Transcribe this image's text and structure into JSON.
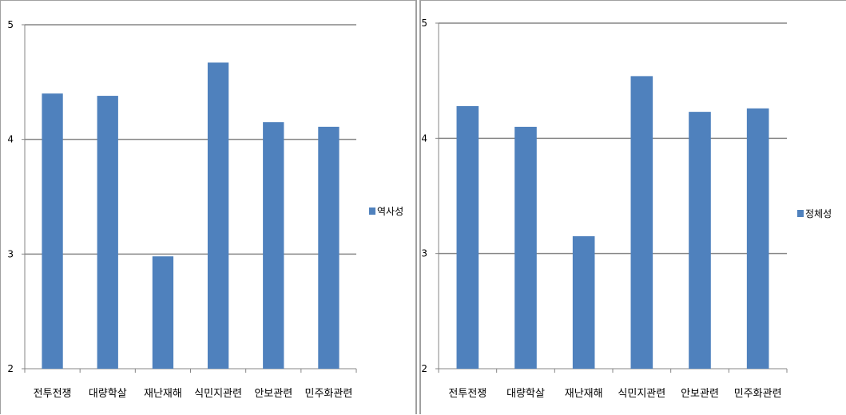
{
  "chart_data": [
    {
      "type": "bar",
      "categories": [
        "전투전쟁",
        "대량학살",
        "재난재해",
        "식민지관련",
        "안보관련",
        "민주화관련"
      ],
      "series": [
        {
          "name": "역사성",
          "values": [
            4.4,
            4.38,
            2.98,
            4.67,
            4.15,
            4.11
          ]
        }
      ],
      "ylim": [
        2,
        5
      ],
      "yticks": [
        2,
        3,
        4,
        5
      ],
      "grid": true,
      "legend": "right",
      "colors": {
        "bar": "#4f81bd",
        "grid": "#868686",
        "axis": "#868686"
      }
    },
    {
      "type": "bar",
      "categories": [
        "전투전쟁",
        "대량학살",
        "재난재해",
        "식민지관련",
        "안보관련",
        "민주화관련"
      ],
      "series": [
        {
          "name": "정체성",
          "values": [
            4.28,
            4.1,
            3.15,
            4.54,
            4.23,
            4.26
          ]
        }
      ],
      "ylim": [
        2,
        5
      ],
      "yticks": [
        2,
        3,
        4,
        5
      ],
      "grid": true,
      "legend": "right",
      "colors": {
        "bar": "#4f81bd",
        "grid": "#868686",
        "axis": "#868686"
      }
    }
  ]
}
